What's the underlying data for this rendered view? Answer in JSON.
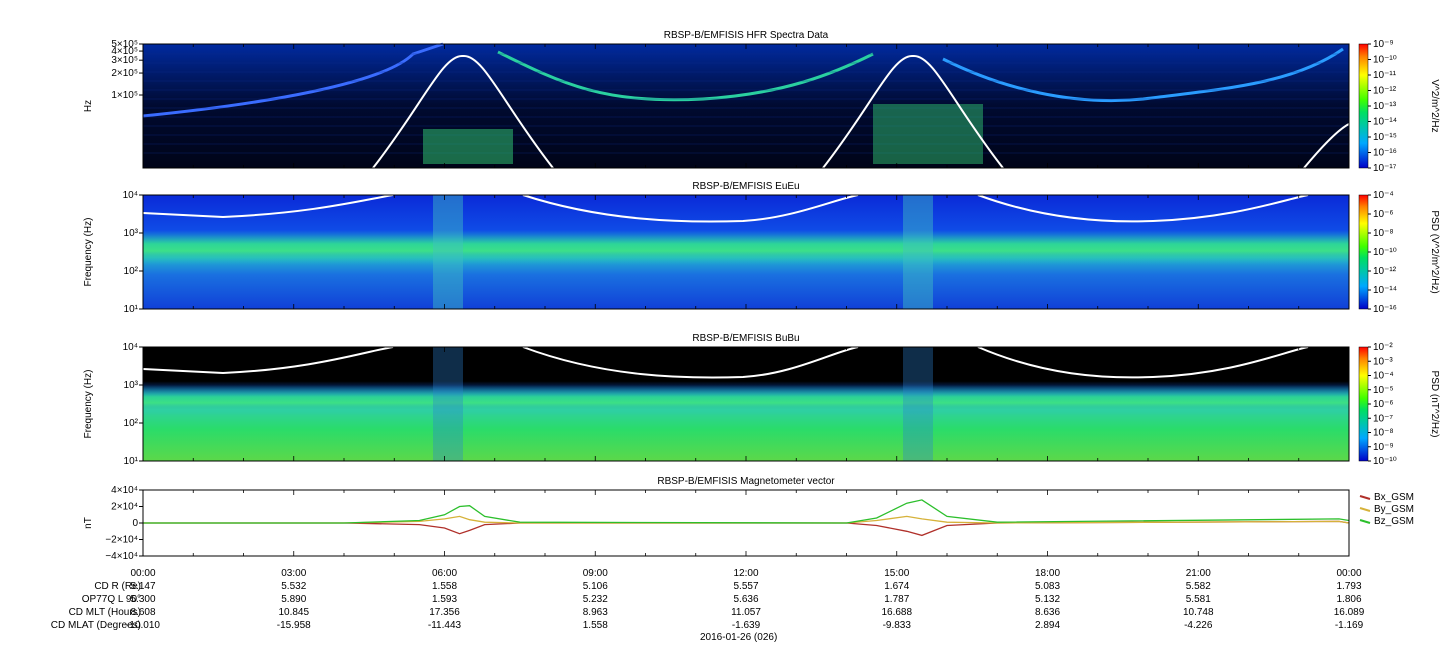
{
  "figure": {
    "date_label": "2016-01-26 (026)",
    "x_ticks": [
      "00:00",
      "03:00",
      "06:00",
      "09:00",
      "12:00",
      "15:00",
      "18:00",
      "21:00",
      "00:00"
    ],
    "ephemeris": [
      {
        "label": "CD R (Re)",
        "values": [
          "5.147",
          "5.532",
          "1.558",
          "5.106",
          "5.557",
          "1.674",
          "5.083",
          "5.582",
          "1.793"
        ]
      },
      {
        "label": "OP77Q L 90°",
        "values": [
          "5.300",
          "5.890",
          "1.593",
          "5.232",
          "5.636",
          "1.787",
          "5.132",
          "5.581",
          "1.806"
        ]
      },
      {
        "label": "CD MLT (Hours)",
        "values": [
          "8.608",
          "10.845",
          "17.356",
          "8.963",
          "11.057",
          "16.688",
          "8.636",
          "10.748",
          "16.089"
        ]
      },
      {
        "label": "CD MLAT (Degrees)",
        "values": [
          "-10.010",
          "-15.958",
          "-11.443",
          "1.558",
          "-1.639",
          "-9.833",
          "2.894",
          "-4.226",
          "-1.169"
        ]
      }
    ]
  },
  "chart_data": [
    {
      "type": "heatmap",
      "title": "RBSP-B/EMFISIS  HFR Spectra Data",
      "ylabel": "Hz",
      "y_ticks": [
        "5×10⁵",
        "4×10⁵",
        "3×10⁵",
        "2×10⁵",
        "1×10⁵"
      ],
      "y_tick_values": [
        500000,
        400000,
        300000,
        200000,
        100000
      ],
      "ylim": [
        10000,
        500000
      ],
      "yscale": "log",
      "colorbar": {
        "label": "V^2/m^2/Hz",
        "ticks": [
          "10⁻⁹",
          "10⁻¹⁰",
          "10⁻¹¹",
          "10⁻¹²",
          "10⁻¹³",
          "10⁻¹⁴",
          "10⁻¹⁵",
          "10⁻¹⁶",
          "10⁻¹⁷"
        ],
        "range": [
          -17,
          -9
        ]
      },
      "background_color": "#000c2a"
    },
    {
      "type": "heatmap",
      "title": "RBSP-B/EMFISIS  EuEu",
      "ylabel": "Frequency (Hz)",
      "y_ticks": [
        "10⁴",
        "10³",
        "10²",
        "10¹"
      ],
      "ylim": [
        10,
        10000
      ],
      "yscale": "log",
      "colorbar": {
        "label": "PSD (V^2/m^2/Hz)",
        "ticks": [
          "10⁻⁴",
          "10⁻⁶",
          "10⁻⁸",
          "10⁻¹⁰",
          "10⁻¹²",
          "10⁻¹⁴",
          "10⁻¹⁶"
        ],
        "range": [
          -16,
          -4
        ]
      },
      "background_color": "#1030d8"
    },
    {
      "type": "heatmap",
      "title": "RBSP-B/EMFISIS  BuBu",
      "ylabel": "Frequency (Hz)",
      "y_ticks": [
        "10⁴",
        "10³",
        "10²",
        "10¹"
      ],
      "ylim": [
        10,
        10000
      ],
      "yscale": "log",
      "colorbar": {
        "label": "PSD (nT^2/Hz)",
        "ticks": [
          "10⁻²",
          "10⁻³",
          "10⁻⁴",
          "10⁻⁵",
          "10⁻⁶",
          "10⁻⁷",
          "10⁻⁸",
          "10⁻⁹",
          "10⁻¹⁰"
        ],
        "range": [
          -10,
          -2
        ]
      },
      "background_color": "#000000"
    },
    {
      "type": "line",
      "title": "RBSP-B/EMFISIS  Magnetometer vector",
      "ylabel": "nT",
      "y_ticks": [
        "4×10⁴",
        "2×10⁴",
        "0",
        "−2×10⁴",
        "−4×10⁴"
      ],
      "y_tick_values": [
        40000,
        20000,
        0,
        -20000,
        -40000
      ],
      "ylim": [
        -40000,
        40000
      ],
      "xlim": [
        0,
        24
      ],
      "series": [
        {
          "name": "Bx_GSM",
          "color": "#b0302a",
          "x": [
            0,
            4,
            5.5,
            6.0,
            6.3,
            6.5,
            6.8,
            7.5,
            14.0,
            14.6,
            15.2,
            15.5,
            16.0,
            17,
            23.8,
            24
          ],
          "y": [
            0,
            0,
            -2000,
            -6000,
            -13000,
            -9000,
            -2000,
            0,
            0,
            -3000,
            -10000,
            -15000,
            -3000,
            0,
            2000,
            0
          ]
        },
        {
          "name": "By_GSM",
          "color": "#d6b23a",
          "x": [
            0,
            4,
            5.5,
            6.0,
            6.3,
            6.5,
            6.8,
            7.5,
            14.0,
            14.6,
            15.2,
            15.5,
            16.0,
            17,
            23.8,
            24
          ],
          "y": [
            0,
            0,
            2000,
            5000,
            8000,
            4000,
            1000,
            0,
            0,
            3000,
            8000,
            5000,
            1000,
            0,
            2000,
            0
          ]
        },
        {
          "name": "Bz_GSM",
          "color": "#2cbf2c",
          "x": [
            0,
            4,
            5.5,
            6.0,
            6.3,
            6.5,
            6.8,
            7.5,
            14.0,
            14.6,
            15.2,
            15.5,
            16.0,
            17,
            23.8,
            24
          ],
          "y": [
            0,
            0,
            3000,
            10000,
            20000,
            21000,
            8000,
            1000,
            0,
            6000,
            24000,
            28000,
            8000,
            1000,
            5000,
            3000
          ]
        }
      ]
    }
  ]
}
